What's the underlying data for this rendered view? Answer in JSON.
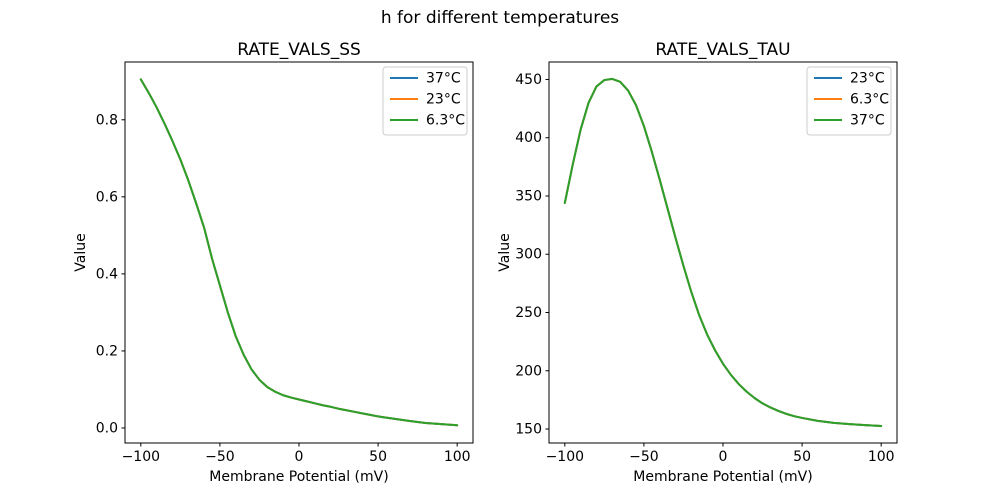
{
  "figure": {
    "suptitle": "h for different temperatures"
  },
  "colors": {
    "background": "#ffffff",
    "axis": "#000000",
    "text": "#000000",
    "series_blue": "#1f77b4",
    "series_orange": "#ff7f0e",
    "series_green": "#2ca02c",
    "legend_border": "#cccccc"
  },
  "chart_data": [
    {
      "type": "line",
      "title": "RATE_VALS_SS",
      "xlabel": "Membrane Potential (mV)",
      "ylabel": "Value",
      "xlim": [
        -110,
        110
      ],
      "ylim": [
        -0.039,
        0.95
      ],
      "xticks": [
        -100,
        -50,
        0,
        50,
        100
      ],
      "xtick_labels": [
        "−100",
        "−50",
        "0",
        "50",
        "100"
      ],
      "yticks": [
        0,
        0.2,
        0.4,
        0.6,
        0.8
      ],
      "ytick_labels": [
        "0.0",
        "0.2",
        "0.4",
        "0.6",
        "0.8"
      ],
      "grid": false,
      "legend_loc": "upper right",
      "annotation": "all three temperature curves overlap exactly; green (last drawn) is visible",
      "x": [
        -100,
        -95,
        -90,
        -85,
        -80,
        -75,
        -70,
        -65,
        -60,
        -55,
        -50,
        -45,
        -40,
        -35,
        -30,
        -25,
        -20,
        -15,
        -10,
        -5,
        0,
        5,
        10,
        15,
        20,
        25,
        30,
        35,
        40,
        45,
        50,
        60,
        70,
        80,
        90,
        100
      ],
      "series": [
        {
          "name": "37°C",
          "color": "#1f77b4",
          "values": [
            0.905,
            0.87,
            0.832,
            0.79,
            0.745,
            0.697,
            0.643,
            0.583,
            0.52,
            0.44,
            0.37,
            0.3,
            0.238,
            0.19,
            0.152,
            0.125,
            0.106,
            0.094,
            0.085,
            0.079,
            0.074,
            0.069,
            0.064,
            0.059,
            0.055,
            0.05,
            0.046,
            0.042,
            0.038,
            0.034,
            0.03,
            0.024,
            0.018,
            0.013,
            0.01,
            0.007
          ]
        },
        {
          "name": "23°C",
          "color": "#ff7f0e",
          "values": [
            0.905,
            0.87,
            0.832,
            0.79,
            0.745,
            0.697,
            0.643,
            0.583,
            0.52,
            0.44,
            0.37,
            0.3,
            0.238,
            0.19,
            0.152,
            0.125,
            0.106,
            0.094,
            0.085,
            0.079,
            0.074,
            0.069,
            0.064,
            0.059,
            0.055,
            0.05,
            0.046,
            0.042,
            0.038,
            0.034,
            0.03,
            0.024,
            0.018,
            0.013,
            0.01,
            0.007
          ]
        },
        {
          "name": "6.3°C",
          "color": "#2ca02c",
          "values": [
            0.905,
            0.87,
            0.832,
            0.79,
            0.745,
            0.697,
            0.643,
            0.583,
            0.52,
            0.44,
            0.37,
            0.3,
            0.238,
            0.19,
            0.152,
            0.125,
            0.106,
            0.094,
            0.085,
            0.079,
            0.074,
            0.069,
            0.064,
            0.059,
            0.055,
            0.05,
            0.046,
            0.042,
            0.038,
            0.034,
            0.03,
            0.024,
            0.018,
            0.013,
            0.01,
            0.007
          ]
        }
      ]
    },
    {
      "type": "line",
      "title": "RATE_VALS_TAU",
      "xlabel": "Membrane Potential (mV)",
      "ylabel": "Value",
      "xlim": [
        -110,
        110
      ],
      "ylim": [
        138,
        465
      ],
      "xticks": [
        -100,
        -50,
        0,
        50,
        100
      ],
      "xtick_labels": [
        "−100",
        "−50",
        "0",
        "50",
        "100"
      ],
      "yticks": [
        150,
        200,
        250,
        300,
        350,
        400,
        450
      ],
      "ytick_labels": [
        "150",
        "200",
        "250",
        "300",
        "350",
        "400",
        "450"
      ],
      "grid": false,
      "legend_loc": "upper right",
      "annotation": "all three temperature curves overlap exactly; green (last drawn) is visible",
      "x": [
        -100,
        -95,
        -90,
        -85,
        -80,
        -75,
        -70,
        -65,
        -60,
        -55,
        -50,
        -45,
        -40,
        -35,
        -30,
        -25,
        -20,
        -15,
        -10,
        -5,
        0,
        5,
        10,
        15,
        20,
        25,
        30,
        35,
        40,
        45,
        50,
        60,
        70,
        80,
        90,
        100
      ],
      "series": [
        {
          "name": "23°C",
          "color": "#1f77b4",
          "values": [
            344,
            377,
            407,
            430,
            444,
            449.5,
            450.5,
            448,
            440.5,
            428,
            410,
            388,
            364,
            339,
            314,
            290,
            267.5,
            247.5,
            231,
            217.5,
            206,
            196.5,
            188.5,
            182,
            176.5,
            172,
            168.5,
            165.5,
            163,
            161,
            159.5,
            157,
            155.3,
            154.2,
            153.3,
            152.6
          ]
        },
        {
          "name": "6.3°C",
          "color": "#ff7f0e",
          "values": [
            344,
            377,
            407,
            430,
            444,
            449.5,
            450.5,
            448,
            440.5,
            428,
            410,
            388,
            364,
            339,
            314,
            290,
            267.5,
            247.5,
            231,
            217.5,
            206,
            196.5,
            188.5,
            182,
            176.5,
            172,
            168.5,
            165.5,
            163,
            161,
            159.5,
            157,
            155.3,
            154.2,
            153.3,
            152.6
          ]
        },
        {
          "name": "37°C",
          "color": "#2ca02c",
          "values": [
            344,
            377,
            407,
            430,
            444,
            449.5,
            450.5,
            448,
            440.5,
            428,
            410,
            388,
            364,
            339,
            314,
            290,
            267.5,
            247.5,
            231,
            217.5,
            206,
            196.5,
            188.5,
            182,
            176.5,
            172,
            168.5,
            165.5,
            163,
            161,
            159.5,
            157,
            155.3,
            154.2,
            153.3,
            152.6
          ]
        }
      ]
    }
  ]
}
